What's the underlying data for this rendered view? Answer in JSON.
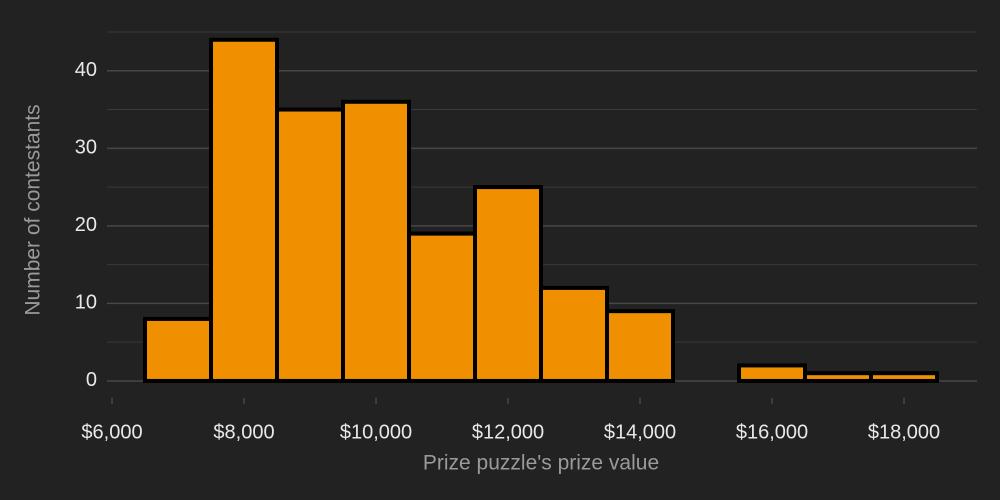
{
  "chart_data": {
    "type": "histogram",
    "x_label": "Prize puzzle's prize value",
    "y_label": "Number of contestants",
    "bins": [
      6500,
      7500,
      8500,
      9500,
      10500,
      11500,
      12500,
      13500,
      14500,
      15500,
      16500,
      17500,
      18500
    ],
    "values": [
      8,
      44,
      35,
      36,
      19,
      25,
      12,
      9,
      0,
      2,
      1,
      1
    ],
    "color": "#f09000",
    "edge_color": "#000000",
    "xlim": [
      5924,
      19106
    ],
    "ylim": [
      -2.2,
      45
    ],
    "xticks": [
      {
        "value": 6000,
        "label": "$6,000"
      },
      {
        "value": 8000,
        "label": "$8,000"
      },
      {
        "value": 10000,
        "label": "$10,000"
      },
      {
        "value": 12000,
        "label": "$12,000"
      },
      {
        "value": 14000,
        "label": "$14,000"
      },
      {
        "value": 16000,
        "label": "$16,000"
      },
      {
        "value": 18000,
        "label": "$18,000"
      }
    ],
    "yticks": [
      0,
      10,
      20,
      30,
      40
    ],
    "yminorticks": [
      5,
      15,
      25,
      35,
      45
    ],
    "grid": true
  }
}
